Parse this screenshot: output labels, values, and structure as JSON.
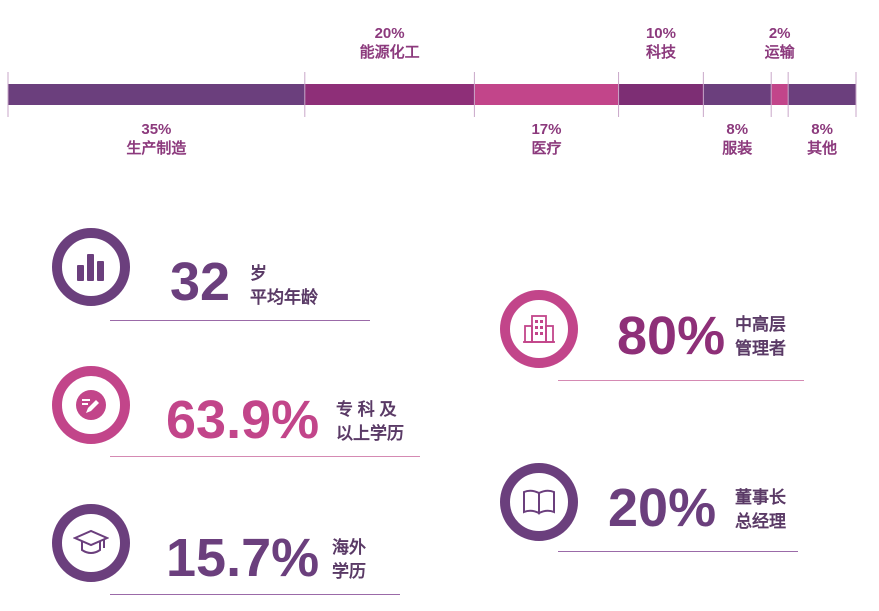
{
  "chart_data": {
    "type": "bar",
    "orientation": "stacked-horizontal",
    "categories": [
      "生产制造",
      "能源化工",
      "医疗",
      "科技",
      "服装",
      "运输",
      "其他"
    ],
    "values": [
      35,
      20,
      17,
      10,
      8,
      2,
      8
    ],
    "value_labels": [
      "35%",
      "20%",
      "17%",
      "10%",
      "8%",
      "2%",
      "8%"
    ],
    "label_positions": [
      "below",
      "above",
      "below",
      "above",
      "below",
      "above",
      "below"
    ],
    "colors": [
      "#6b3f7d",
      "#8e2f78",
      "#c2458a",
      "#7d2e74",
      "#6b3f7d",
      "#c2458a",
      "#6b3f7d"
    ]
  },
  "stats": [
    {
      "value": "32",
      "caption_lines": [
        "岁",
        "平均年龄"
      ],
      "icon": "bar-chart-icon",
      "color": "#6b3f7d"
    },
    {
      "value": "63.9%",
      "caption_lines": [
        "专 科 及",
        "以上学历"
      ],
      "icon": "pencil-icon",
      "color": "#c2458a"
    },
    {
      "value": "15.7%",
      "caption_lines": [
        "海外",
        "学历"
      ],
      "icon": "graduation-cap-icon",
      "color": "#6b3f7d"
    },
    {
      "value": "80%",
      "caption_lines": [
        "中高层",
        "管理者"
      ],
      "icon": "building-icon",
      "color": "#c2458a"
    },
    {
      "value": "20%",
      "caption_lines": [
        "董事长",
        "总经理"
      ],
      "icon": "book-icon",
      "color": "#6b3f7d"
    }
  ]
}
